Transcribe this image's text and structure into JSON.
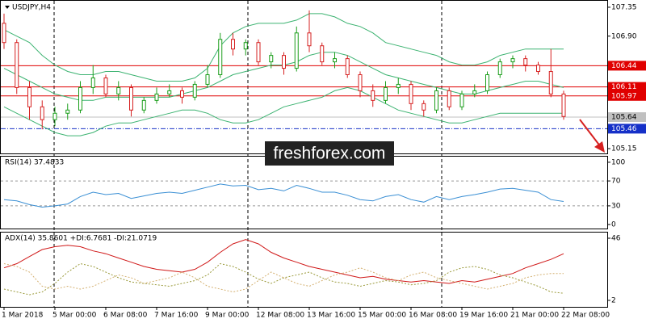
{
  "chart_data": [
    {
      "type": "candlestick",
      "title": "USDJPY,H4",
      "categories": [
        "1 Mar 2018",
        null,
        null,
        null,
        "5 Mar 00:00",
        null,
        null,
        null,
        "6 Mar 08:00",
        null,
        null,
        null,
        "7 Mar 16:00",
        null,
        null,
        null,
        "9 Mar 00:00",
        null,
        null,
        null,
        "12 Mar 08:00",
        null,
        null,
        null,
        "13 Mar 16:00",
        null,
        null,
        null,
        "15 Mar 00:00",
        null,
        null,
        null,
        "16 Mar 08:00",
        null,
        null,
        null,
        "19 Mar 16:00",
        null,
        null,
        null,
        "21 Mar 00:00",
        null,
        null,
        null,
        "22 Mar 08:00"
      ],
      "open": [
        107.1,
        106.8,
        106.1,
        105.8,
        105.6,
        105.7,
        105.75,
        106.1,
        106.25,
        106.0,
        106.1,
        105.75,
        105.9,
        106.0,
        106.05,
        105.95,
        106.15,
        106.3,
        106.85,
        106.7,
        106.8,
        106.5,
        106.6,
        106.4,
        106.95,
        106.75,
        106.5,
        106.55,
        106.3,
        106.05,
        105.9,
        106.1,
        106.15,
        105.85,
        105.75,
        106.05,
        105.8,
        106.0,
        106.05,
        106.3,
        106.5,
        106.55,
        106.45,
        106.35,
        106.0
      ],
      "high": [
        107.25,
        106.85,
        106.2,
        105.9,
        105.8,
        105.85,
        106.2,
        106.45,
        106.3,
        106.2,
        106.15,
        105.95,
        106.1,
        106.15,
        106.1,
        106.2,
        106.45,
        106.95,
        106.95,
        106.85,
        106.85,
        106.65,
        106.65,
        107.05,
        107.3,
        106.8,
        106.65,
        106.6,
        106.35,
        106.15,
        106.2,
        106.25,
        106.2,
        105.9,
        106.1,
        106.1,
        106.05,
        106.15,
        106.35,
        106.55,
        106.6,
        106.6,
        106.5,
        106.7,
        106.05
      ],
      "low": [
        106.7,
        106.0,
        105.6,
        105.45,
        105.5,
        105.6,
        105.7,
        106.0,
        105.95,
        105.9,
        105.65,
        105.7,
        105.85,
        105.95,
        105.85,
        105.9,
        106.1,
        106.25,
        106.6,
        106.6,
        106.45,
        106.4,
        106.3,
        106.35,
        106.65,
        106.45,
        106.4,
        106.25,
        105.95,
        105.8,
        105.85,
        106.0,
        105.75,
        105.65,
        105.7,
        105.75,
        105.75,
        105.95,
        106.0,
        106.25,
        106.4,
        106.35,
        106.3,
        105.95,
        105.6
      ],
      "close": [
        106.8,
        106.1,
        105.8,
        105.6,
        105.7,
        105.75,
        106.1,
        106.25,
        106.0,
        106.1,
        105.75,
        105.9,
        106.0,
        106.05,
        105.95,
        106.15,
        106.3,
        106.85,
        106.7,
        106.8,
        106.5,
        106.6,
        106.4,
        106.95,
        106.75,
        106.5,
        106.55,
        106.3,
        106.05,
        105.9,
        106.1,
        106.15,
        105.85,
        105.75,
        106.05,
        105.8,
        106.0,
        106.05,
        106.3,
        106.5,
        106.55,
        106.45,
        106.35,
        106.0,
        105.65
      ],
      "up_color": "#1a9e1a",
      "down_color": "#d62020",
      "series": [
        {
          "color": "#3cb371",
          "values": [
            107.0,
            106.9,
            106.8,
            106.6,
            106.45,
            106.35,
            106.3,
            106.3,
            106.35,
            106.35,
            106.3,
            106.25,
            106.2,
            106.2,
            106.2,
            106.25,
            106.4,
            106.75,
            106.95,
            107.05,
            107.1,
            107.1,
            107.1,
            107.15,
            107.25,
            107.25,
            107.2,
            107.1,
            107.05,
            106.95,
            106.8,
            106.75,
            106.7,
            106.65,
            106.6,
            106.5,
            106.45,
            106.45,
            106.5,
            106.6,
            106.65,
            106.7,
            106.7,
            106.7,
            106.7
          ]
        },
        {
          "color": "#3cb371",
          "values": [
            106.4,
            106.3,
            106.2,
            106.1,
            106.0,
            105.95,
            105.9,
            105.9,
            105.95,
            105.95,
            105.95,
            105.95,
            105.95,
            105.95,
            106.0,
            106.05,
            106.1,
            106.2,
            106.3,
            106.35,
            106.4,
            106.45,
            106.45,
            106.5,
            106.6,
            106.65,
            106.65,
            106.6,
            106.5,
            106.4,
            106.3,
            106.25,
            106.2,
            106.15,
            106.1,
            106.05,
            106.0,
            106.0,
            106.05,
            106.1,
            106.15,
            106.2,
            106.2,
            106.15,
            106.1
          ]
        },
        {
          "color": "#3cb371",
          "values": [
            105.8,
            105.7,
            105.6,
            105.5,
            105.4,
            105.35,
            105.35,
            105.4,
            105.5,
            105.55,
            105.55,
            105.6,
            105.65,
            105.7,
            105.75,
            105.75,
            105.7,
            105.6,
            105.55,
            105.55,
            105.6,
            105.7,
            105.8,
            105.85,
            105.9,
            105.95,
            106.05,
            106.1,
            106.05,
            105.95,
            105.85,
            105.75,
            105.7,
            105.65,
            105.6,
            105.55,
            105.55,
            105.6,
            105.65,
            105.7,
            105.7,
            105.7,
            105.7,
            105.7,
            105.7
          ]
        }
      ],
      "ylim": [
        105.075,
        107.45
      ],
      "yticks": [
        107.35,
        {
          "value": 106.9,
          "label": "106.90"
        },
        105.15
      ],
      "levels": [
        {
          "value": 106.44,
          "label": "106.44",
          "color": "#e00000",
          "style": "solid"
        },
        {
          "value": 106.11,
          "label": "106.11",
          "color": "#e00000",
          "style": "solid"
        },
        {
          "value": 105.97,
          "label": "105.97",
          "color": "#e00000",
          "style": "solid"
        },
        {
          "value": 105.64,
          "label": "105.64",
          "color": "#c0c0c0",
          "style": "solid"
        },
        {
          "value": 105.46,
          "label": "105.46",
          "color": "#1530c8",
          "style": "dashdot"
        }
      ],
      "watermark": "freshforex.com"
    },
    {
      "type": "line",
      "title": "RSI(14) 37.4833",
      "series": [
        {
          "color": "#3a8fd4",
          "values": [
            40,
            38,
            32,
            28,
            30,
            33,
            45,
            52,
            48,
            50,
            42,
            46,
            50,
            52,
            50,
            55,
            60,
            65,
            62,
            63,
            56,
            58,
            54,
            63,
            58,
            52,
            52,
            47,
            40,
            38,
            45,
            48,
            40,
            36,
            45,
            40,
            45,
            48,
            52,
            57,
            58,
            55,
            52,
            40,
            37
          ]
        }
      ],
      "ylim": [
        -6.4,
        109
      ],
      "yticks": [
        100,
        70,
        30,
        0
      ],
      "grid": true
    },
    {
      "type": "line",
      "title": "ADX(14) 35.8601 +DI:6.7681 -DI:21.0719",
      "series": [
        {
          "color": "#d01818",
          "style": "solid",
          "values": [
            25,
            28,
            33,
            38,
            40,
            41,
            40,
            37,
            35,
            32,
            29,
            26,
            24,
            23,
            22,
            24,
            29,
            36,
            42,
            45,
            42,
            36,
            32,
            29,
            26,
            24,
            22,
            20,
            18,
            19,
            17,
            16,
            15,
            16,
            15,
            14,
            16,
            15,
            17,
            19,
            21,
            25,
            28,
            31,
            35
          ]
        },
        {
          "color": "#9a9a3a",
          "style": "dotted",
          "values": [
            10,
            8,
            6,
            8,
            14,
            22,
            28,
            26,
            22,
            18,
            15,
            14,
            13,
            12,
            14,
            16,
            20,
            28,
            26,
            22,
            17,
            14,
            18,
            20,
            22,
            18,
            15,
            14,
            12,
            14,
            16,
            15,
            13,
            14,
            16,
            22,
            25,
            26,
            24,
            20,
            18,
            15,
            12,
            8,
            7
          ]
        },
        {
          "color": "#d4b070",
          "style": "dotted",
          "values": [
            28,
            26,
            22,
            12,
            10,
            12,
            10,
            12,
            16,
            20,
            18,
            14,
            16,
            18,
            22,
            18,
            12,
            10,
            8,
            10,
            16,
            22,
            18,
            14,
            12,
            16,
            20,
            22,
            25,
            22,
            18,
            16,
            20,
            22,
            18,
            16,
            14,
            12,
            10,
            12,
            14,
            18,
            20,
            21,
            21
          ]
        }
      ],
      "ylim": [
        -2.6,
        50
      ],
      "yticks": [
        46,
        2
      ]
    }
  ]
}
